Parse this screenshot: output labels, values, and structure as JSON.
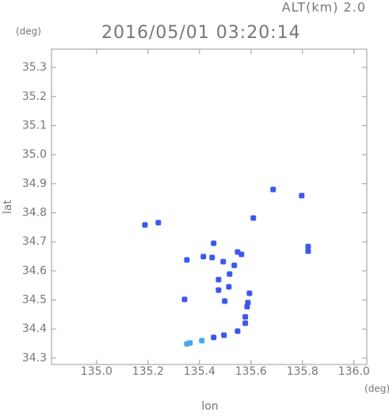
{
  "chart_data": {
    "type": "scatter",
    "title": "2016/05/01 03:20:14",
    "altitude_label": "ALT(km) 2.0",
    "y_unit": "(deg)",
    "x_unit": "(deg)",
    "xlabel": "lon",
    "ylabel": "lat",
    "xlim": [
      134.825,
      136.05
    ],
    "ylim": [
      34.278,
      35.363
    ],
    "xticks": [
      {
        "value": 135,
        "label": "135.0"
      },
      135.2,
      135.4,
      135.6,
      135.8,
      {
        "value": 136,
        "label": "136.0"
      }
    ],
    "yticks": [
      34.3,
      34.4,
      34.5,
      34.6,
      34.7,
      34.8,
      34.9,
      {
        "value": 35,
        "label": "35.0"
      },
      35.1,
      35.2,
      35.3
    ],
    "series": [
      {
        "color": "#3b58ef",
        "x": [
          135.188,
          135.24,
          135.351,
          135.455,
          135.415,
          135.449,
          135.492,
          135.548,
          135.563,
          135.474,
          135.517,
          135.474,
          135.514,
          135.535,
          135.342,
          135.498,
          135.588,
          135.594,
          135.578,
          135.585,
          135.578,
          135.548,
          135.495,
          135.455,
          135.609,
          135.686,
          135.797,
          135.822,
          135.822
        ],
        "values": [
          34.758,
          34.766,
          34.638,
          34.695,
          34.649,
          34.646,
          34.632,
          34.665,
          34.657,
          34.57,
          34.589,
          34.534,
          34.545,
          34.619,
          34.502,
          34.496,
          34.491,
          34.523,
          34.442,
          34.477,
          34.42,
          34.393,
          34.379,
          34.371,
          34.782,
          34.88,
          34.859,
          34.668,
          34.684
        ]
      },
      {
        "color": "#4aa8e8",
        "x": [
          135.409,
          135.363,
          135.351
        ],
        "values": [
          34.36,
          34.352,
          34.349
        ]
      }
    ]
  }
}
